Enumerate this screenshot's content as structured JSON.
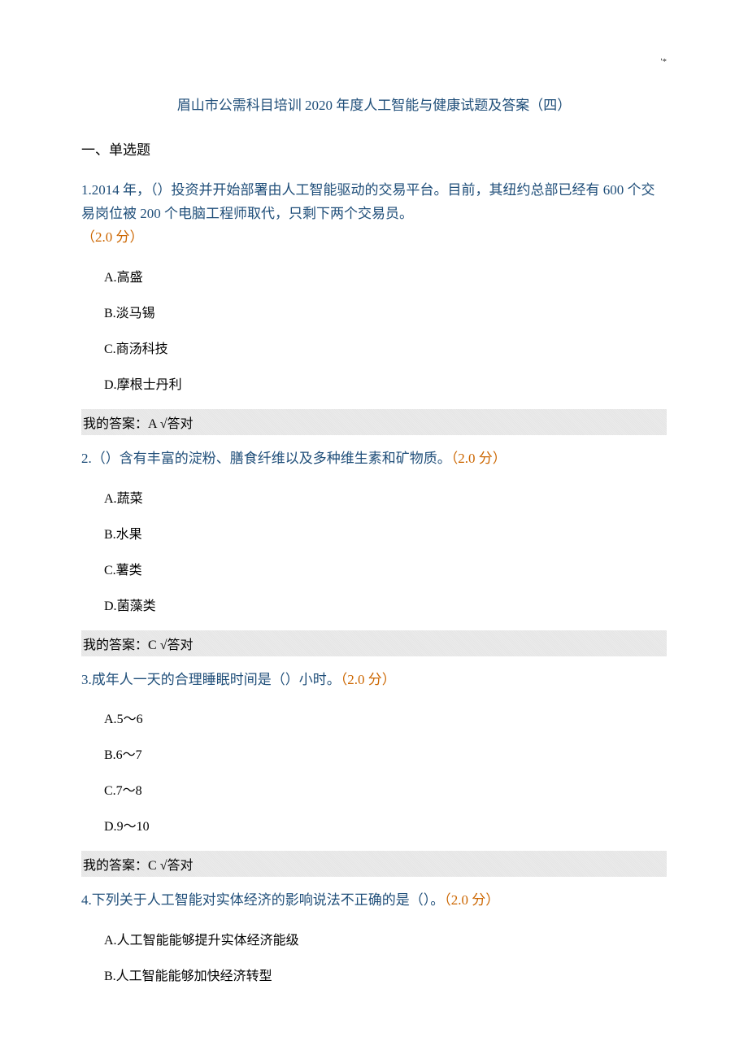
{
  "page_marker": "'*",
  "doc_title": "眉山市公需科目培训 2020 年度人工智能与健康试题及答案（四）",
  "section_heading": "一、单选题",
  "colors": {
    "title_color": "#1f4e79",
    "question_color": "#1f4e79",
    "points_color": "#cc6600",
    "option_color": "#000000",
    "answer_bg": "#e8e8e8",
    "body_bg": "#ffffff"
  },
  "typography": {
    "title_fontsize": 17,
    "question_fontsize": 17,
    "option_fontsize": 16,
    "answer_fontsize": 16,
    "font_family": "SimSun"
  },
  "questions": [
    {
      "number": "1.",
      "text": "2014 年，（）投资并开始部署由人工智能驱动的交易平台。目前，其纽约总部已经有 600 个交易岗位被 200 个电脑工程师取代，只剩下两个交易员。",
      "points": "（2.0 分）",
      "options": [
        {
          "label": "A.",
          "text": "高盛"
        },
        {
          "label": "B.",
          "text": "淡马锡"
        },
        {
          "label": "C.",
          "text": "商汤科技"
        },
        {
          "label": "D.",
          "text": "摩根士丹利"
        }
      ],
      "answer_prefix": "我的答案：",
      "answer_value": "A",
      "answer_status": "√答对"
    },
    {
      "number": "2.",
      "text": "（）含有丰富的淀粉、膳食纤维以及多种维生素和矿物质。",
      "points": "（2.0 分）",
      "options": [
        {
          "label": "A.",
          "text": "蔬菜"
        },
        {
          "label": "B.",
          "text": "水果"
        },
        {
          "label": "C.",
          "text": "薯类"
        },
        {
          "label": "D.",
          "text": "菌藻类"
        }
      ],
      "answer_prefix": "我的答案：",
      "answer_value": "C",
      "answer_status": "√答对"
    },
    {
      "number": "3.",
      "text": "成年人一天的合理睡眠时间是（）小时。",
      "points": "（2.0 分）",
      "options": [
        {
          "label": "A.",
          "text": "5～6"
        },
        {
          "label": "B.",
          "text": "6～7"
        },
        {
          "label": "C.",
          "text": "7～8"
        },
        {
          "label": "D.",
          "text": "9～10"
        }
      ],
      "answer_prefix": "我的答案：",
      "answer_value": "C",
      "answer_status": "√答对"
    },
    {
      "number": "4.",
      "text": "下列关于人工智能对实体经济的影响说法不正确的是（）。",
      "points": "（2.0 分）",
      "options": [
        {
          "label": "A.",
          "text": "人工智能能够提升实体经济能级"
        },
        {
          "label": "B.",
          "text": "人工智能能够加快经济转型"
        }
      ],
      "answer_prefix": "",
      "answer_value": "",
      "answer_status": ""
    }
  ]
}
